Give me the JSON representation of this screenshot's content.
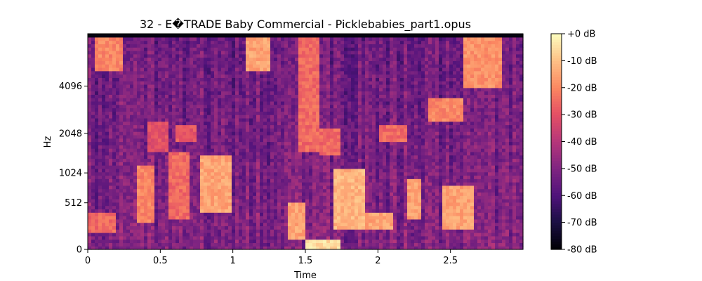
{
  "chart_data": {
    "type": "heatmap",
    "title": "32 - E�TRADE Baby Commercial - Picklebabies_part1.opus",
    "xlabel": "Time",
    "ylabel": "Hz",
    "x_ticks": [
      {
        "value": 0,
        "label": "0"
      },
      {
        "value": 0.5,
        "label": "0.5"
      },
      {
        "value": 1,
        "label": "1"
      },
      {
        "value": 1.5,
        "label": "1.5"
      },
      {
        "value": 2,
        "label": "2"
      },
      {
        "value": 2.5,
        "label": "2.5"
      }
    ],
    "y_ticks": [
      {
        "value": 0,
        "label": "0"
      },
      {
        "value": 512,
        "label": "512"
      },
      {
        "value": 1024,
        "label": "1024"
      },
      {
        "value": 2048,
        "label": "2048"
      },
      {
        "value": 4096,
        "label": "4096"
      }
    ],
    "xlim": [
      0,
      3.0
    ],
    "ylim": [
      0,
      8192
    ],
    "y_scale": "mel",
    "colormap": "magma",
    "colorbar": {
      "range": [
        -80,
        0
      ],
      "ticks": [
        {
          "value": 0,
          "label": "+0 dB"
        },
        {
          "value": -10,
          "label": "-10 dB"
        },
        {
          "value": -20,
          "label": "-20 dB"
        },
        {
          "value": -30,
          "label": "-30 dB"
        },
        {
          "value": -40,
          "label": "-40 dB"
        },
        {
          "value": -50,
          "label": "-50 dB"
        },
        {
          "value": -60,
          "label": "-60 dB"
        },
        {
          "value": -70,
          "label": "-70 dB"
        },
        {
          "value": -80,
          "label": "-80 dB"
        }
      ]
    },
    "regions": [
      {
        "t": [
          0.05,
          0.25
        ],
        "hz": [
          5000,
          8000
        ],
        "db": -20
      },
      {
        "t": [
          1.1,
          1.25
        ],
        "hz": [
          5000,
          8000
        ],
        "db": -15
      },
      {
        "t": [
          1.45,
          1.6
        ],
        "hz": [
          1500,
          8000
        ],
        "db": -25
      },
      {
        "t": [
          2.6,
          2.85
        ],
        "hz": [
          4000,
          8000
        ],
        "db": -18
      },
      {
        "t": [
          0.35,
          0.45
        ],
        "hz": [
          250,
          1200
        ],
        "db": -20
      },
      {
        "t": [
          0.55,
          0.7
        ],
        "hz": [
          300,
          1500
        ],
        "db": -25
      },
      {
        "t": [
          0.78,
          1.0
        ],
        "hz": [
          400,
          1400
        ],
        "db": -15
      },
      {
        "t": [
          1.38,
          1.5
        ],
        "hz": [
          100,
          500
        ],
        "db": -15
      },
      {
        "t": [
          1.5,
          1.75
        ],
        "hz": [
          0,
          100
        ],
        "db": -5
      },
      {
        "t": [
          1.7,
          1.9
        ],
        "hz": [
          200,
          1100
        ],
        "db": -12
      },
      {
        "t": [
          1.9,
          2.1
        ],
        "hz": [
          200,
          400
        ],
        "db": -15
      },
      {
        "t": [
          2.2,
          2.3
        ],
        "hz": [
          300,
          900
        ],
        "db": -15
      },
      {
        "t": [
          2.45,
          2.65
        ],
        "hz": [
          200,
          800
        ],
        "db": -15
      },
      {
        "t": [
          2.35,
          2.6
        ],
        "hz": [
          2500,
          3500
        ],
        "db": -20
      },
      {
        "t": [
          0.0,
          0.2
        ],
        "hz": [
          150,
          400
        ],
        "db": -25
      },
      {
        "t": [
          0.4,
          0.55
        ],
        "hz": [
          1500,
          2500
        ],
        "db": -30
      },
      {
        "t": [
          0.6,
          0.75
        ],
        "hz": [
          1800,
          2400
        ],
        "db": -28
      },
      {
        "t": [
          1.6,
          1.75
        ],
        "hz": [
          1400,
          2200
        ],
        "db": -25
      },
      {
        "t": [
          2.0,
          2.2
        ],
        "hz": [
          1800,
          2400
        ],
        "db": -25
      }
    ]
  }
}
